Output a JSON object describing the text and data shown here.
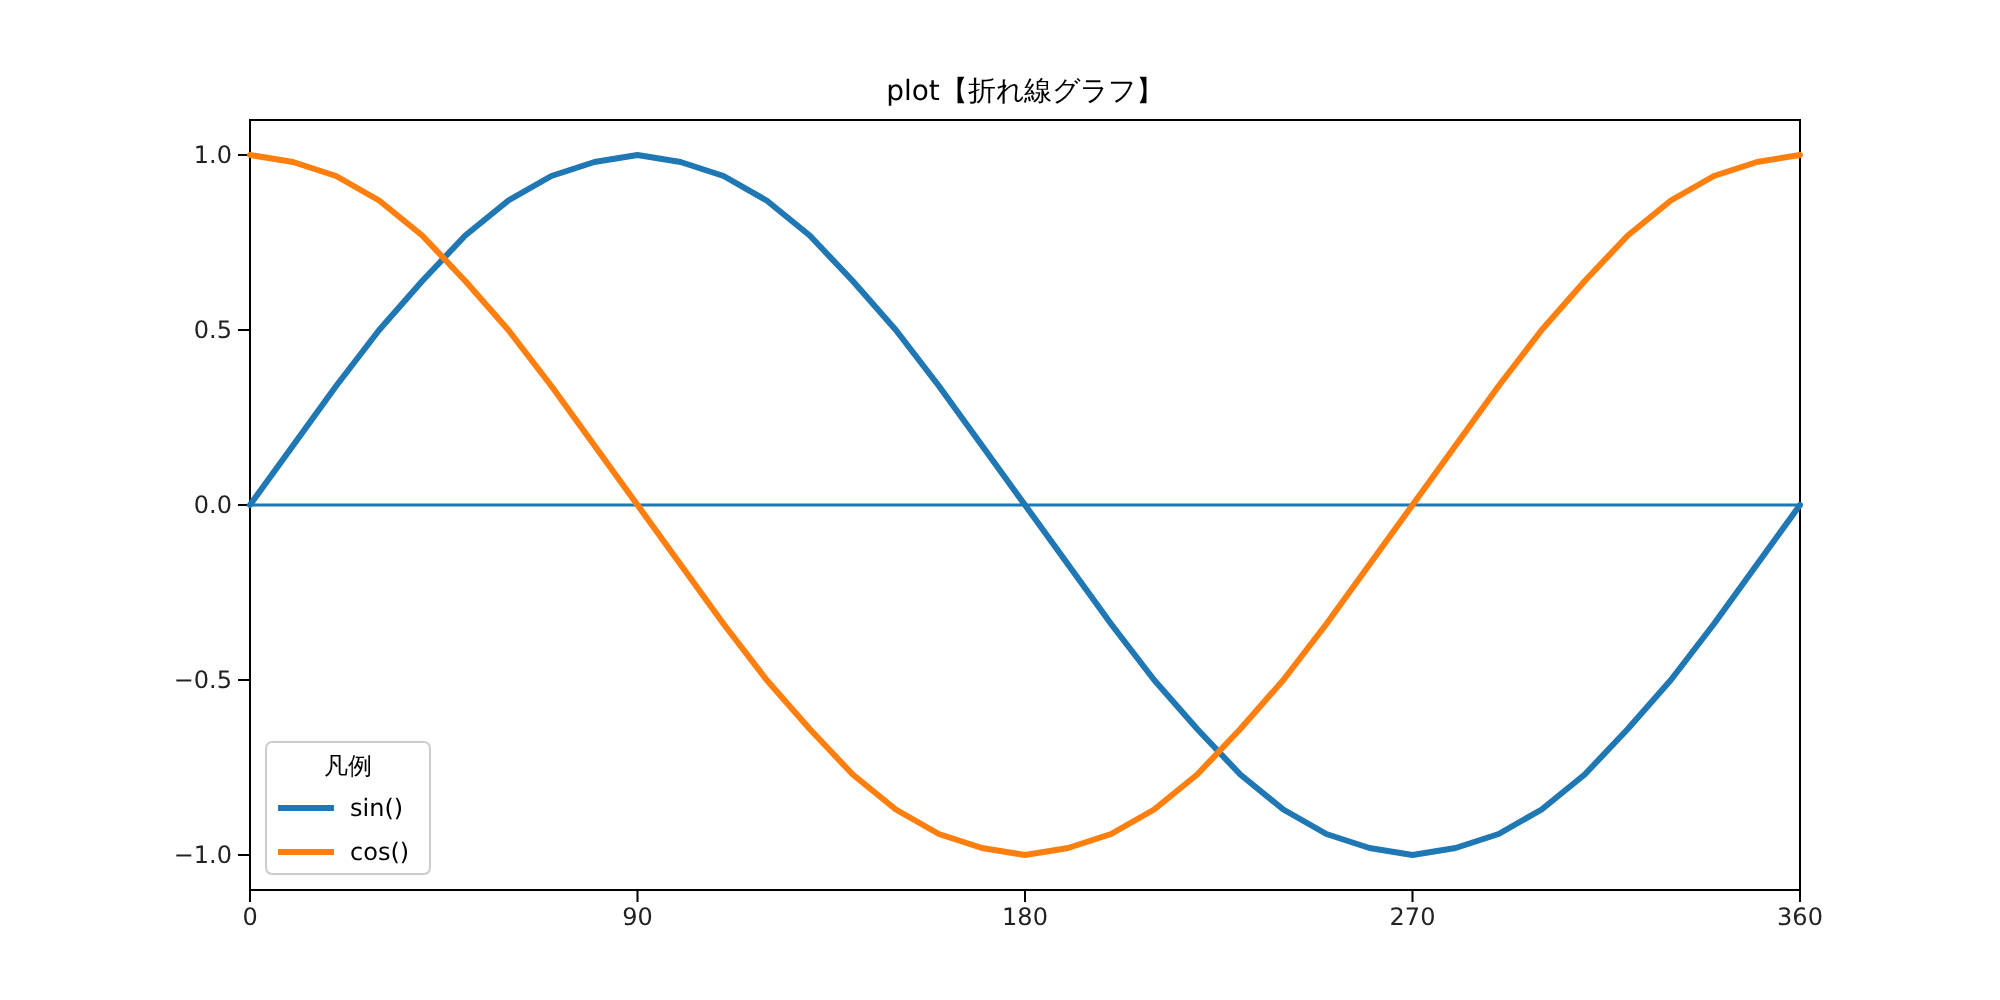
{
  "chart_data": {
    "type": "line",
    "title": "plot【折れ線グラフ】",
    "legend_title": "凡例",
    "legend": "bottom left",
    "grid": false,
    "line_style": "solid",
    "marker": "none",
    "x": [
      0,
      10,
      20,
      30,
      40,
      50,
      60,
      70,
      80,
      90,
      100,
      110,
      120,
      130,
      140,
      150,
      160,
      170,
      180,
      190,
      200,
      210,
      220,
      230,
      240,
      250,
      260,
      270,
      280,
      290,
      300,
      310,
      320,
      330,
      340,
      350,
      360
    ],
    "series": [
      {
        "name": "sin()",
        "color": "#1f77b4",
        "values": [
          0,
          0.17,
          0.34,
          0.5,
          0.64,
          0.77,
          0.87,
          0.94,
          0.98,
          1,
          0.98,
          0.94,
          0.87,
          0.77,
          0.64,
          0.5,
          0.34,
          0.17,
          0,
          -0.17,
          -0.34,
          -0.5,
          -0.64,
          -0.77,
          -0.87,
          -0.94,
          -0.98,
          -1,
          -0.98,
          -0.94,
          -0.87,
          -0.77,
          -0.64,
          -0.5,
          -0.34,
          -0.17,
          0
        ]
      },
      {
        "name": "cos()",
        "color": "#ff7f0e",
        "values": [
          1,
          0.98,
          0.94,
          0.87,
          0.77,
          0.64,
          0.5,
          0.34,
          0.17,
          0,
          -0.17,
          -0.34,
          -0.5,
          -0.64,
          -0.77,
          -0.87,
          -0.94,
          -0.98,
          -1,
          -0.98,
          -0.94,
          -0.87,
          -0.77,
          -0.64,
          -0.5,
          -0.34,
          -0.17,
          0,
          0.17,
          0.34,
          0.5,
          0.64,
          0.77,
          0.87,
          0.94,
          0.98,
          1
        ]
      }
    ],
    "ref_lines": [
      {
        "axis": "y",
        "value": 0,
        "color": "#1f77b4",
        "line_style": "solid"
      }
    ],
    "xlim": [
      0,
      360
    ],
    "xticks": [
      0,
      90,
      180,
      270,
      360
    ],
    "ylim": [
      -1.1,
      1.1
    ],
    "yticks": [
      {
        "value": -1,
        "label": "−1.0"
      },
      {
        "value": -0.5,
        "label": "−0.5"
      },
      {
        "value": 0,
        "label": "0.0"
      },
      {
        "value": 0.5,
        "label": "0.5"
      },
      {
        "value": 1,
        "label": "1.0"
      }
    ]
  }
}
